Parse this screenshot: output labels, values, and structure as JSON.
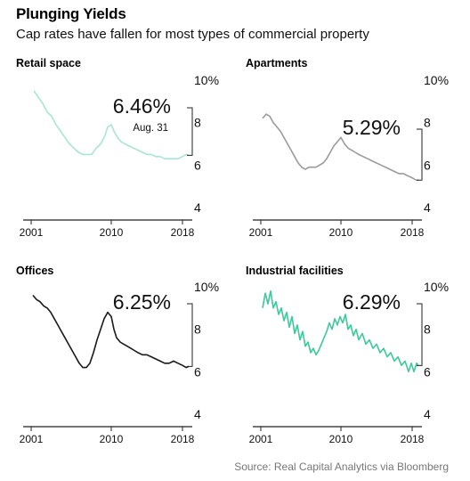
{
  "title": "Plunging Yields",
  "subtitle": "Cap rates have fallen for most types of commercial property",
  "source": "Source: Real Capital Analytics via Bloomberg",
  "chart_data": [
    {
      "type": "line",
      "title": "Retail space",
      "color": "#a9e6cf",
      "callout": "6.46%",
      "note": "Aug. 31",
      "ylim": [
        4,
        10
      ],
      "yticks": [
        "10%",
        "8",
        "6",
        "4"
      ],
      "xticks": [
        "2001",
        "2010",
        "2018"
      ],
      "x": [
        2001.3,
        2001.8,
        2002.3,
        2002.8,
        2003.3,
        2003.8,
        2004.3,
        2004.8,
        2005.3,
        2005.8,
        2006.3,
        2006.8,
        2007.3,
        2007.8,
        2008.3,
        2008.8,
        2009.3,
        2009.6,
        2010.0,
        2010.3,
        2010.7,
        2011.1,
        2011.5,
        2012.0,
        2012.5,
        2013.0,
        2013.5,
        2014.0,
        2014.5,
        2015.0,
        2015.5,
        2016.0,
        2016.5,
        2017.0,
        2017.5,
        2018.0,
        2018.4,
        2018.7
      ],
      "y": [
        9.5,
        9.2,
        8.9,
        8.5,
        8.3,
        7.9,
        7.6,
        7.3,
        7.0,
        6.8,
        6.6,
        6.5,
        6.5,
        6.5,
        6.8,
        7.0,
        7.4,
        7.8,
        7.9,
        7.6,
        7.3,
        7.1,
        7.0,
        6.9,
        6.8,
        6.7,
        6.6,
        6.5,
        6.5,
        6.4,
        6.4,
        6.3,
        6.3,
        6.3,
        6.3,
        6.4,
        6.5,
        6.46
      ]
    },
    {
      "type": "line",
      "title": "Apartments",
      "color": "#9b9b9b",
      "callout": "5.29%",
      "note": "",
      "ylim": [
        4,
        10
      ],
      "yticks": [
        "10%",
        "8",
        "6",
        "4"
      ],
      "xticks": [
        "2001",
        "2010",
        "2018"
      ],
      "x": [
        2001.2,
        2001.6,
        2002.0,
        2002.4,
        2002.8,
        2003.2,
        2003.6,
        2004.0,
        2004.4,
        2004.8,
        2005.2,
        2005.6,
        2006.0,
        2006.4,
        2006.8,
        2007.2,
        2007.6,
        2008.0,
        2008.4,
        2008.8,
        2009.2,
        2009.6,
        2010.0,
        2010.4,
        2010.8,
        2011.2,
        2011.6,
        2012.0,
        2012.5,
        2013.0,
        2013.5,
        2014.0,
        2014.5,
        2015.0,
        2015.5,
        2016.0,
        2016.5,
        2017.0,
        2017.5,
        2018.0,
        2018.4,
        2018.7
      ],
      "y": [
        8.2,
        8.4,
        8.3,
        8.0,
        7.8,
        7.6,
        7.3,
        7.0,
        6.7,
        6.4,
        6.1,
        5.9,
        5.8,
        5.9,
        5.9,
        5.9,
        6.0,
        6.1,
        6.3,
        6.6,
        6.9,
        7.1,
        7.3,
        7.0,
        6.8,
        6.7,
        6.6,
        6.5,
        6.4,
        6.3,
        6.2,
        6.1,
        6.0,
        5.9,
        5.8,
        5.7,
        5.6,
        5.6,
        5.5,
        5.4,
        5.3,
        5.29
      ]
    },
    {
      "type": "line",
      "title": "Offices",
      "color": "#1a1a1a",
      "callout": "6.25%",
      "note": "",
      "ylim": [
        4,
        10
      ],
      "yticks": [
        "10%",
        "8",
        "6",
        "4"
      ],
      "xticks": [
        "2001",
        "2010",
        "2018"
      ],
      "x": [
        2001.2,
        2001.6,
        2002.0,
        2002.4,
        2002.8,
        2003.2,
        2003.6,
        2004.0,
        2004.4,
        2004.8,
        2005.2,
        2005.6,
        2006.0,
        2006.4,
        2006.8,
        2007.2,
        2007.6,
        2008.0,
        2008.4,
        2008.8,
        2009.2,
        2009.6,
        2010.0,
        2010.3,
        2010.6,
        2011.0,
        2011.4,
        2011.8,
        2012.2,
        2012.6,
        2013.0,
        2013.5,
        2014.0,
        2014.5,
        2015.0,
        2015.5,
        2016.0,
        2016.5,
        2017.0,
        2017.5,
        2018.0,
        2018.4,
        2018.7
      ],
      "y": [
        9.6,
        9.4,
        9.3,
        9.1,
        9.0,
        8.8,
        8.5,
        8.2,
        7.9,
        7.6,
        7.3,
        7.0,
        6.7,
        6.4,
        6.2,
        6.2,
        6.4,
        6.9,
        7.5,
        8.0,
        8.5,
        8.8,
        8.6,
        8.0,
        7.6,
        7.4,
        7.3,
        7.2,
        7.1,
        7.0,
        6.9,
        6.8,
        6.8,
        6.7,
        6.6,
        6.5,
        6.4,
        6.4,
        6.5,
        6.4,
        6.3,
        6.2,
        6.25
      ]
    },
    {
      "type": "line",
      "title": "Industrial facilities",
      "color": "#3ec99a",
      "callout": "6.29%",
      "note": "",
      "ylim": [
        4,
        10
      ],
      "yticks": [
        "10%",
        "8",
        "6",
        "4"
      ],
      "xticks": [
        "2001",
        "2010",
        "2018"
      ],
      "x": [
        2001.2,
        2001.5,
        2001.8,
        2002.1,
        2002.4,
        2002.7,
        2003.0,
        2003.3,
        2003.6,
        2003.9,
        2004.2,
        2004.5,
        2004.8,
        2005.1,
        2005.4,
        2005.7,
        2006.0,
        2006.3,
        2006.6,
        2006.9,
        2007.2,
        2007.5,
        2007.8,
        2008.1,
        2008.4,
        2008.7,
        2009.0,
        2009.3,
        2009.6,
        2009.9,
        2010.2,
        2010.5,
        2010.8,
        2011.1,
        2011.4,
        2011.7,
        2012.0,
        2012.4,
        2012.8,
        2013.2,
        2013.6,
        2014.0,
        2014.4,
        2014.8,
        2015.2,
        2015.6,
        2016.0,
        2016.4,
        2016.8,
        2017.2,
        2017.6,
        2017.9,
        2018.2,
        2018.5,
        2018.7
      ],
      "y": [
        9.0,
        9.7,
        9.2,
        9.8,
        9.0,
        9.3,
        8.7,
        9.0,
        8.4,
        8.8,
        8.1,
        8.6,
        7.8,
        8.2,
        7.5,
        7.9,
        7.2,
        7.4,
        6.9,
        7.1,
        6.8,
        7.0,
        7.3,
        7.6,
        7.9,
        8.3,
        8.0,
        8.5,
        8.2,
        8.6,
        8.3,
        8.7,
        8.0,
        8.2,
        7.7,
        8.0,
        7.5,
        7.8,
        7.3,
        7.5,
        7.1,
        7.3,
        6.9,
        7.1,
        6.7,
        6.9,
        6.5,
        6.7,
        6.3,
        6.5,
        6.0,
        6.4,
        6.0,
        6.4,
        6.29
      ]
    }
  ]
}
